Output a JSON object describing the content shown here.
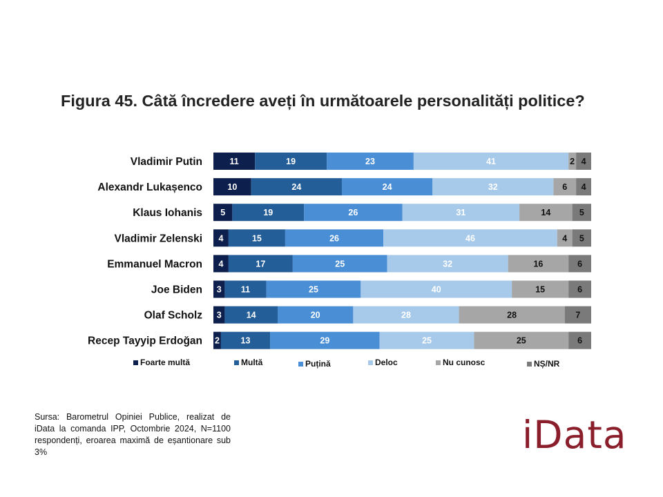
{
  "title": "Figura 45. Câtă încredere aveți în următoarele personalități politice?",
  "source": "Sursa: Barometrul Opiniei Publice, realizat de iData la comanda IPP, Octombrie 2024, N=1100 respondenți, eroarea maximă de eșantionare sub 3%",
  "logo_text": "iData",
  "chart_data": {
    "type": "bar",
    "orientation": "horizontal",
    "stacked": true,
    "title": "Figura 45. Câtă încredere aveți în următoarele personalități politice?",
    "categories": [
      "Vladimir Putin",
      "Alexandr Lukașenco",
      "Klaus Iohanis",
      "Vladimir Zelenski",
      "Emmanuel Macron",
      "Joe Biden",
      "Olaf Scholz",
      "Recep Tayyip Erdoğan"
    ],
    "series": [
      {
        "name": "Foarte multă",
        "color": "#0d1f4d",
        "label_color": "#ffffff",
        "values": [
          11,
          10,
          5,
          4,
          4,
          3,
          3,
          2
        ]
      },
      {
        "name": "Multă",
        "color": "#245e99",
        "label_color": "#ffffff",
        "values": [
          19,
          24,
          19,
          15,
          17,
          11,
          14,
          13
        ]
      },
      {
        "name": "Puțină",
        "color": "#4a8fd6",
        "label_color": "#ffffff",
        "values": [
          23,
          24,
          26,
          26,
          25,
          25,
          20,
          29
        ]
      },
      {
        "name": "Deloc",
        "color": "#a7caeb",
        "label_color": "#ffffff",
        "values": [
          41,
          32,
          31,
          46,
          32,
          40,
          28,
          25
        ]
      },
      {
        "name": "Nu cunosc",
        "color": "#a6a6a6",
        "label_color": "#111111",
        "values": [
          2,
          6,
          14,
          4,
          16,
          15,
          28,
          25
        ]
      },
      {
        "name": "NȘ/NR",
        "color": "#7a7a7a",
        "label_color": "#111111",
        "values": [
          4,
          4,
          5,
          5,
          6,
          6,
          7,
          6
        ]
      }
    ],
    "xlim": [
      0,
      100
    ],
    "legend": "bottom",
    "grid": false
  }
}
